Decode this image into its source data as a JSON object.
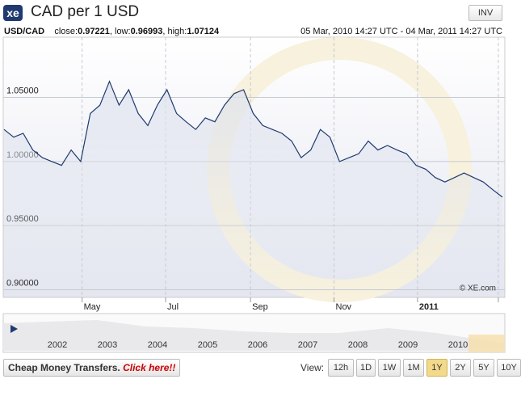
{
  "header": {
    "logo": "xe",
    "title": "CAD per 1 USD",
    "invert": "INV",
    "pair": "USD/CAD",
    "stats": [
      {
        "label": "close:",
        "value": "0.97221"
      },
      {
        "label": "low:",
        "value": "0.96993"
      },
      {
        "label": "high:",
        "value": "1.07124"
      }
    ],
    "range": "05 Mar, 2010 14:27 UTC - 04 Mar, 2011 14:27 UTC"
  },
  "chart_data": {
    "type": "line",
    "color": "#1f3a6e",
    "credit": "© XE.com",
    "grid": true,
    "x": [
      "2010-03-05",
      "2010-03-12",
      "2010-03-19",
      "2010-03-26",
      "2010-04-02",
      "2010-04-09",
      "2010-04-16",
      "2010-04-23",
      "2010-04-30",
      "2010-05-07",
      "2010-05-14",
      "2010-05-21",
      "2010-05-28",
      "2010-06-04",
      "2010-06-11",
      "2010-06-18",
      "2010-06-25",
      "2010-07-02",
      "2010-07-09",
      "2010-07-16",
      "2010-07-23",
      "2010-07-30",
      "2010-08-06",
      "2010-08-13",
      "2010-08-20",
      "2010-08-27",
      "2010-09-03",
      "2010-09-10",
      "2010-09-17",
      "2010-09-24",
      "2010-10-01",
      "2010-10-08",
      "2010-10-15",
      "2010-10-22",
      "2010-10-29",
      "2010-11-05",
      "2010-11-12",
      "2010-11-19",
      "2010-11-26",
      "2010-12-03",
      "2010-12-10",
      "2010-12-17",
      "2010-12-24",
      "2010-12-31",
      "2011-01-07",
      "2011-01-14",
      "2011-01-21",
      "2011-01-28",
      "2011-02-04",
      "2011-02-11",
      "2011-02-18",
      "2011-02-25",
      "2011-03-04"
    ],
    "values": [
      1.025,
      1.019,
      1.022,
      1.009,
      1.003,
      1.0,
      0.997,
      1.009,
      1.0,
      1.0375,
      1.044,
      1.0625,
      1.044,
      1.056,
      1.0375,
      1.028,
      1.044,
      1.056,
      1.0375,
      1.031,
      1.025,
      1.034,
      1.031,
      1.044,
      1.053,
      1.056,
      1.0375,
      1.028,
      1.025,
      1.022,
      1.016,
      1.003,
      1.009,
      1.025,
      1.019,
      1.0,
      1.003,
      1.006,
      1.016,
      1.009,
      1.0125,
      1.009,
      1.006,
      0.997,
      0.994,
      0.9875,
      0.984,
      0.9875,
      0.991,
      0.9875,
      0.984,
      0.978,
      0.97221
    ],
    "xlim": [
      "2010-03-05",
      "2011-03-04"
    ],
    "xticks": [
      {
        "value": "2010-05-01",
        "label": "May"
      },
      {
        "value": "2010-07-01",
        "label": "Jul"
      },
      {
        "value": "2010-09-01",
        "label": "Sep"
      },
      {
        "value": "2010-11-01",
        "label": "Nov"
      },
      {
        "value": "2011-01-01",
        "label": "2011"
      },
      {
        "value": "2011-03-01",
        "label": ""
      }
    ],
    "ylim": [
      0.894,
      1.097
    ],
    "yticks": [
      {
        "value": 0.9,
        "label": "0.90000"
      },
      {
        "value": 0.95,
        "label": "0.95000"
      },
      {
        "value": 1.0,
        "label": "1.00000"
      },
      {
        "value": 1.05,
        "label": "1.05000"
      }
    ]
  },
  "navigator": {
    "years": [
      "2002",
      "2003",
      "2004",
      "2005",
      "2006",
      "2007",
      "2008",
      "2009",
      "2010"
    ]
  },
  "footer": {
    "promo": "Cheap Money Transfers.",
    "link": "Click here!!",
    "view": "View:",
    "buttons": [
      "12h",
      "1D",
      "1W",
      "1M",
      "1Y",
      "2Y",
      "5Y",
      "10Y"
    ],
    "selected": "1Y"
  }
}
